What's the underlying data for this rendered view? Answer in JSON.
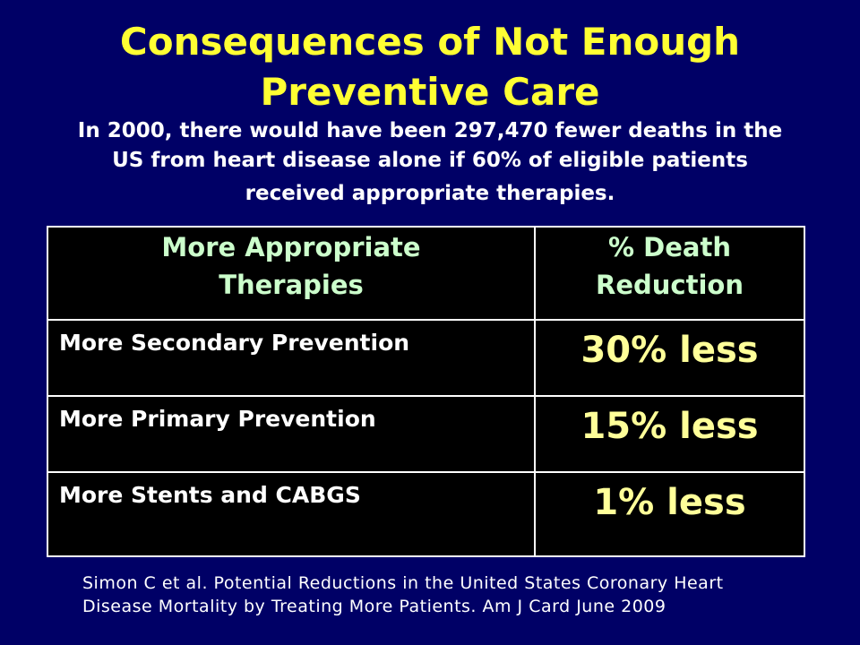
{
  "title_lines": [
    "Consequences of Not Enough",
    "Preventive Care"
  ],
  "subtitle_lines": [
    "In 2000, there would have been 297,470 fewer deaths in the",
    "US from heart disease alone if 60% of eligible patients",
    "received appropriate therapies."
  ],
  "table": {
    "header": [
      [
        "More Appropriate",
        "Therapies"
      ],
      [
        "% Death",
        "Reduction"
      ]
    ],
    "rows": [
      [
        "More Secondary Prevention",
        "30% less"
      ],
      [
        "More Primary Prevention",
        "15% less"
      ],
      [
        "More Stents and CABGS",
        "1% less"
      ]
    ]
  },
  "citation_lines": [
    "Simon C et al. Potential Reductions in the United States Coronary Heart",
    "Disease Mortality  by Treating More Patients. Am J Card June 2009"
  ]
}
